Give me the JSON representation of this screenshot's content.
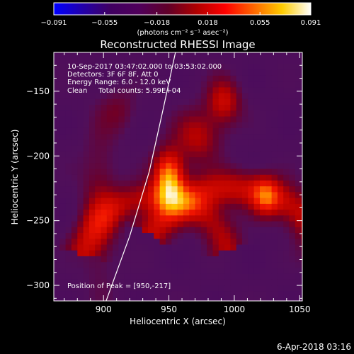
{
  "chart_data": {
    "type": "heatmap",
    "title": "Reconstructed RHESSI Image",
    "xlabel": "Heliocentric X (arcsec)",
    "ylabel": "Heliocentric Y (arcsec)",
    "xlim": [
      862,
      1052
    ],
    "ylim": [
      -312,
      -120
    ],
    "x_ticks": [
      900,
      950,
      1000,
      1050
    ],
    "y_ticks": [
      -150,
      -200,
      -250,
      -300
    ],
    "colorbar": {
      "unit_label": "(photons cm⁻² s⁻¹ asec⁻²)",
      "min": -0.091,
      "max": 0.091,
      "tick_labels": [
        "−0.091",
        "−0.055",
        "−0.018",
        "0.018",
        "0.055",
        "0.091"
      ],
      "tick_values": [
        -0.091,
        -0.055,
        -0.018,
        0.018,
        0.055,
        0.091
      ],
      "colors": [
        "#0000ff",
        "#2200aa",
        "#400060",
        "#50005a",
        "#600028",
        "#b00000",
        "#ff0000",
        "#ff6600",
        "#ffcc00",
        "#ffffff"
      ]
    },
    "annotations": [
      "10-Sep-2017 03:47:02.000 to 03:53:02.000",
      "Detectors: 3F 6F 8F, Att 0",
      "Energy Range: 6.0 - 12.0 keV",
      "Clean     Total counts: 5.99E+04"
    ],
    "peak_label": "Position of Peak = [950,-217]",
    "peak": [
      950,
      -217
    ],
    "limb_curve": [
      [
        902,
        -312
      ],
      [
        920,
        -262
      ],
      [
        935,
        -212
      ],
      [
        946,
        -162
      ],
      [
        955,
        -120
      ]
    ],
    "sources": [
      {
        "x": 950,
        "y": -217,
        "peak": 0.091
      },
      {
        "x": 992,
        "y": -158,
        "peak": 0.06
      },
      {
        "x": 1024,
        "y": -232,
        "peak": 0.055
      },
      {
        "x": 897,
        "y": -240,
        "peak": 0.02
      }
    ]
  },
  "footer": {
    "date": "6-Apr-2018 03:16"
  }
}
